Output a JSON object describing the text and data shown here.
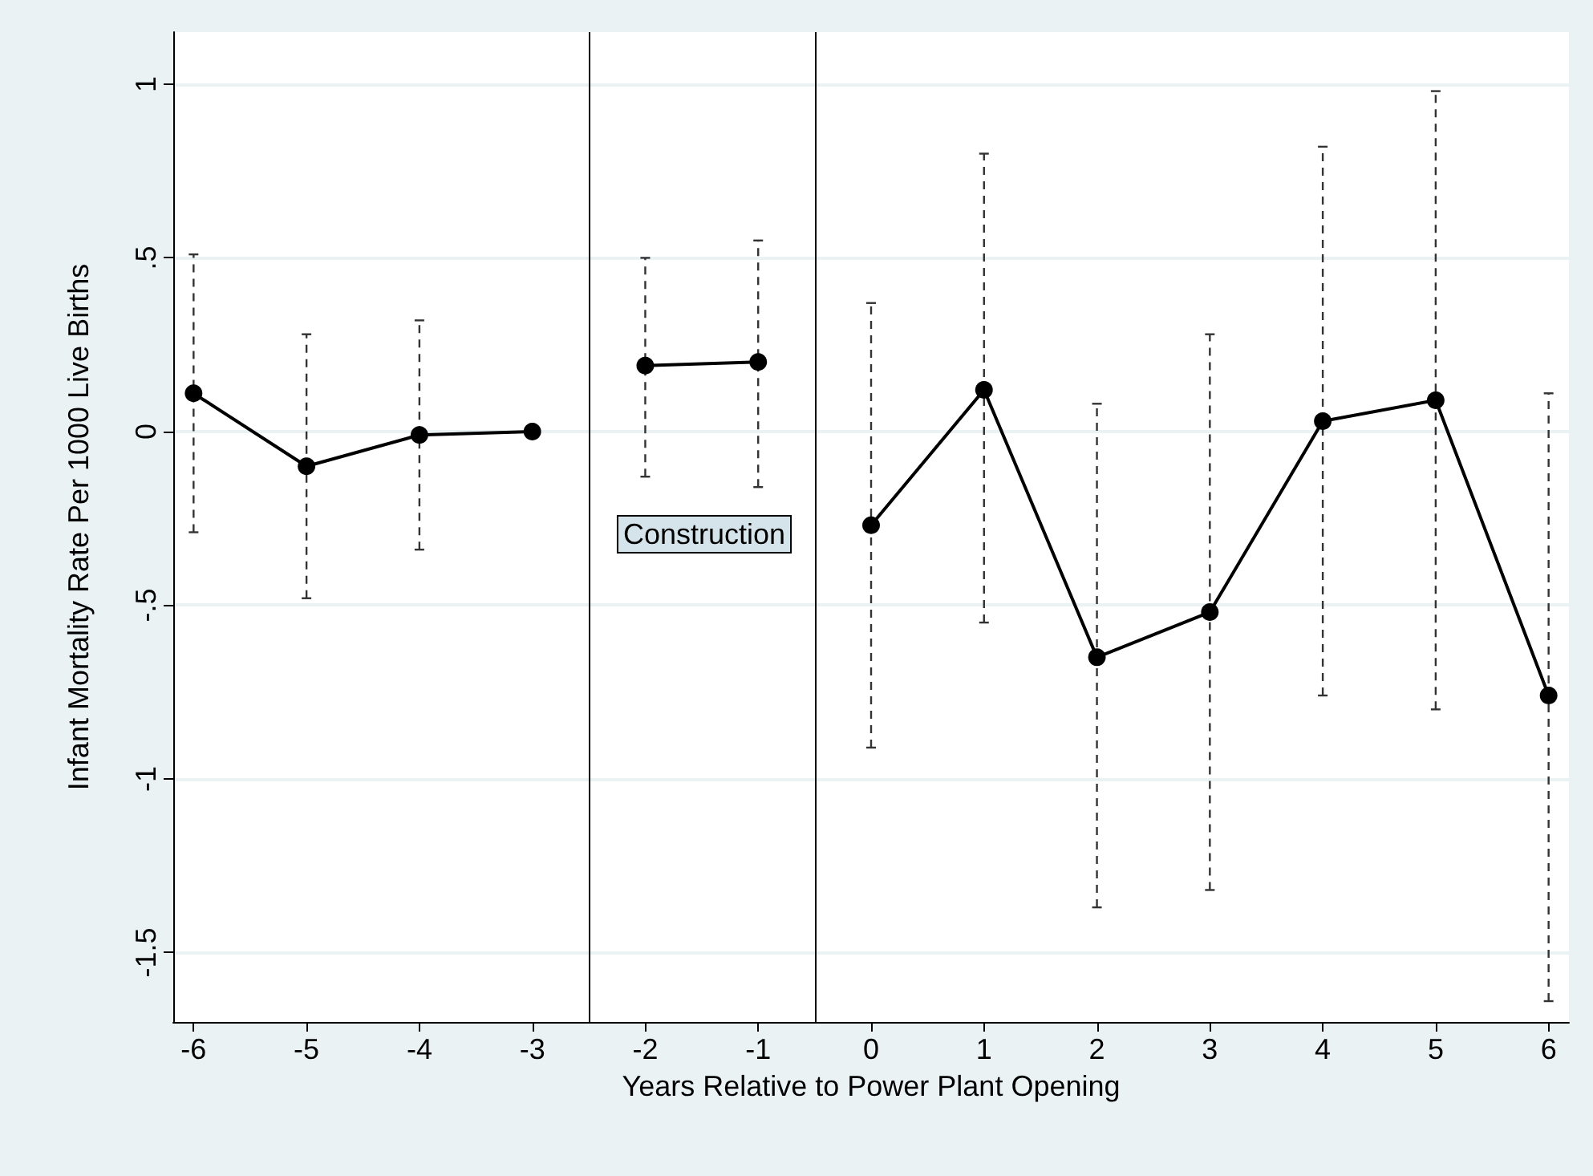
{
  "chart_data": {
    "type": "line",
    "xlabel": "Years Relative to Power Plant Opening",
    "ylabel": "Infant Mortality Rate Per 1000 Live Births",
    "series": [
      {
        "color": "#000000",
        "x": [
          -6,
          -5,
          -4,
          -3
        ],
        "values": [
          0.11,
          -0.1,
          -0.01,
          0.0
        ],
        "errors": [
          [
            -0.29,
            0.51
          ],
          [
            -0.48,
            0.28
          ],
          [
            -0.34,
            0.32
          ],
          null
        ]
      },
      {
        "color": "#000000",
        "x": [
          -2,
          -1
        ],
        "values": [
          0.19,
          0.2
        ],
        "errors": [
          [
            -0.13,
            0.5
          ],
          [
            -0.16,
            0.55
          ]
        ]
      },
      {
        "color": "#000000",
        "x": [
          0,
          1,
          2,
          3,
          4,
          5,
          6
        ],
        "values": [
          -0.27,
          0.12,
          -0.65,
          -0.52,
          0.03,
          0.09,
          -0.76
        ],
        "errors": [
          [
            -0.91,
            0.37
          ],
          [
            -0.55,
            0.8
          ],
          [
            -1.37,
            0.08
          ],
          [
            -1.32,
            0.28
          ],
          [
            -0.76,
            0.82
          ],
          [
            -0.8,
            0.98
          ],
          [
            -1.64,
            0.11
          ]
        ]
      }
    ],
    "xlim": [
      -6.18,
      6.18
    ],
    "xticks": [
      -6,
      -5,
      -4,
      -3,
      -2,
      -1,
      0,
      1,
      2,
      3,
      4,
      5,
      6
    ],
    "ylim": [
      -1.7,
      1.15
    ],
    "yticks": [
      {
        "value": -1.5,
        "label": "-1.5"
      },
      {
        "value": -1,
        "label": "-1"
      },
      {
        "value": -0.5,
        "label": "-.5"
      },
      {
        "value": 0,
        "label": "0"
      },
      {
        "value": 0.5,
        "label": ".5"
      },
      {
        "value": 1,
        "label": "1"
      }
    ],
    "ref_lines": [
      {
        "axis": "x",
        "value": -2.5,
        "color": "#000000"
      },
      {
        "axis": "x",
        "value": -0.5,
        "color": "#000000"
      }
    ],
    "annotations": [
      "Construction"
    ],
    "grid": "y",
    "marker": "circle",
    "line_style": "solid"
  }
}
